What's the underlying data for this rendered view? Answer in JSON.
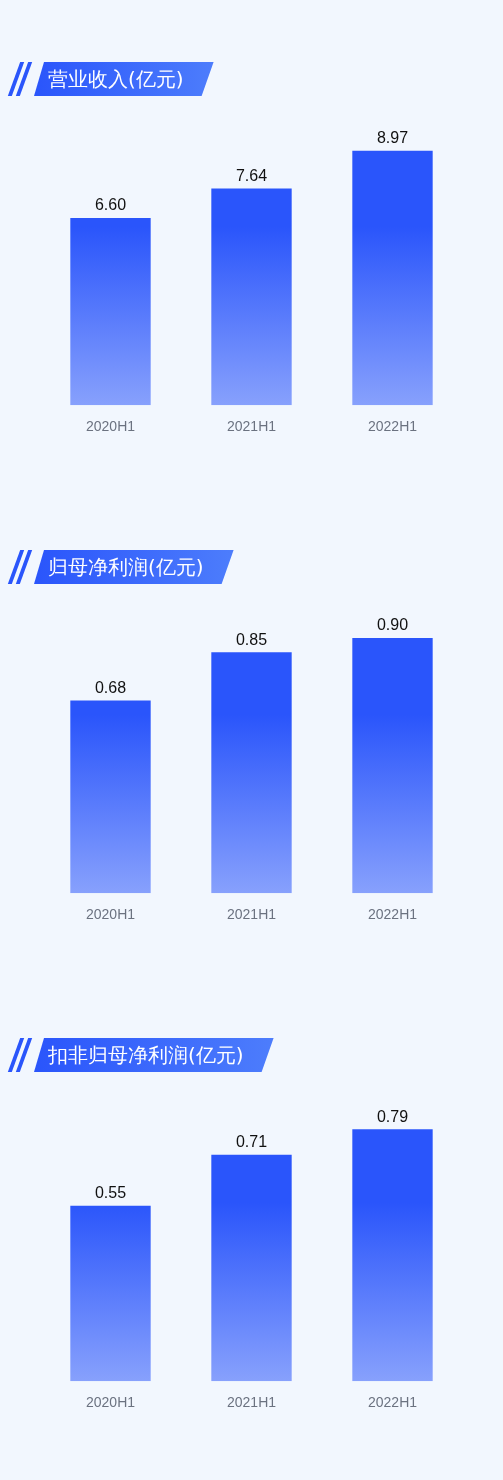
{
  "chart_data": [
    {
      "type": "bar",
      "title": "营业收入(亿元)",
      "categories": [
        "2020H1",
        "2021H1",
        "2022H1"
      ],
      "values": [
        6.6,
        7.64,
        8.97
      ],
      "value_labels": [
        "6.60",
        "7.64",
        "8.97"
      ],
      "color": "#2a55fb",
      "grid": false,
      "legend": false
    },
    {
      "type": "bar",
      "title": "归母净利润(亿元)",
      "categories": [
        "2020H1",
        "2021H1",
        "2022H1"
      ],
      "values": [
        0.68,
        0.85,
        0.9
      ],
      "value_labels": [
        "0.68",
        "0.85",
        "0.90"
      ],
      "color": "#2a55fb",
      "grid": false,
      "legend": false
    },
    {
      "type": "bar",
      "title": "扣非归母净利润(亿元)",
      "categories": [
        "2020H1",
        "2021H1",
        "2022H1"
      ],
      "values": [
        0.55,
        0.71,
        0.79
      ],
      "value_labels": [
        "0.55",
        "0.71",
        "0.79"
      ],
      "color": "#2a55fb",
      "grid": false,
      "legend": false
    }
  ]
}
